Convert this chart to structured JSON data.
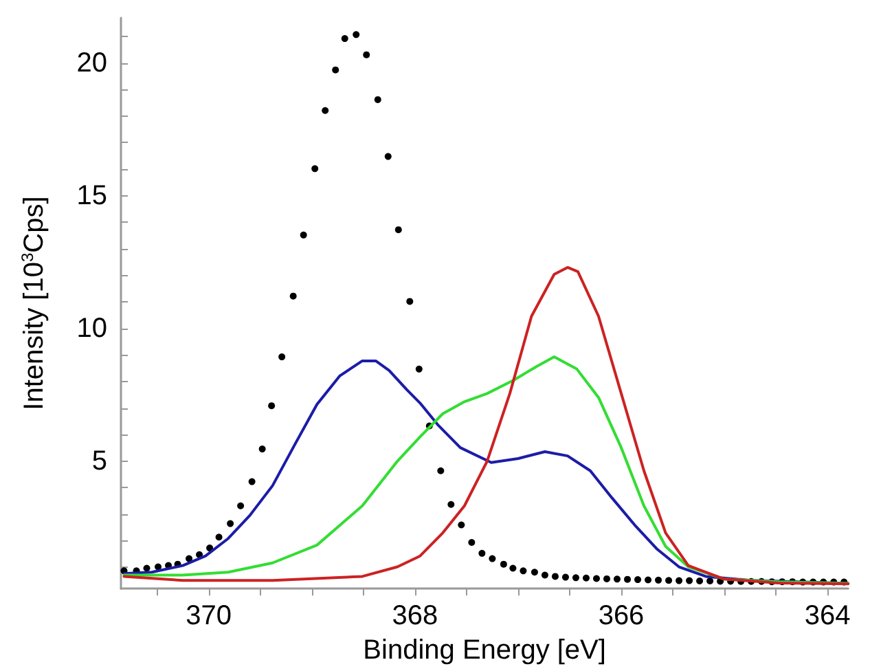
{
  "chart_data": {
    "type": "line",
    "xlabel": "Binding Energy [eV]",
    "ylabel": "Intensity [10$^{3}$Cps]",
    "xlim": [
      370.85,
      363.8
    ],
    "ylim": [
      0.2,
      21.7
    ],
    "xticks": [
      {
        "value": 370.5,
        "label": null
      },
      370,
      {
        "value": 369.5,
        "label": null
      },
      {
        "value": 369,
        "label": null
      },
      {
        "value": 368.5,
        "label": null
      },
      368,
      {
        "value": 367.5,
        "label": null
      },
      {
        "value": 367,
        "label": null
      },
      {
        "value": 366.5,
        "label": null
      },
      366,
      {
        "value": 365.5,
        "label": null
      },
      {
        "value": 365,
        "label": null
      },
      {
        "value": 364.5,
        "label": null
      },
      364
    ],
    "yticks": [
      {
        "value": 1,
        "label": null
      },
      {
        "value": 2,
        "label": null
      },
      {
        "value": 3,
        "label": null
      },
      {
        "value": 4,
        "label": null
      },
      5,
      {
        "value": 6,
        "label": null
      },
      {
        "value": 7,
        "label": null
      },
      {
        "value": 8,
        "label": null
      },
      {
        "value": 9,
        "label": null
      },
      10,
      {
        "value": 11,
        "label": null
      },
      {
        "value": 12,
        "label": null
      },
      {
        "value": 13,
        "label": null
      },
      {
        "value": 14,
        "label": null
      },
      15,
      {
        "value": 16,
        "label": null
      },
      {
        "value": 17,
        "label": null
      },
      {
        "value": 18,
        "label": null
      },
      {
        "value": 19,
        "label": null
      },
      20,
      {
        "value": 21,
        "label": null
      }
    ],
    "grid": false,
    "series": [
      {
        "color": "#1c1ca8",
        "x": [
          370.82,
          370.55,
          370.25,
          370.03,
          369.81,
          369.6,
          369.38,
          369.16,
          368.95,
          368.73,
          368.51,
          368.38,
          368.25,
          368.08,
          367.95,
          367.78,
          367.56,
          367.26,
          367.0,
          366.74,
          366.52,
          366.3,
          366.09,
          365.87,
          365.65,
          365.44,
          365.18,
          364.74,
          363.8
        ],
        "values": [
          0.77,
          0.82,
          1.07,
          1.43,
          2.09,
          2.96,
          4.08,
          5.66,
          7.14,
          8.21,
          8.78,
          8.78,
          8.42,
          7.7,
          7.19,
          6.38,
          5.51,
          4.95,
          5.1,
          5.36,
          5.2,
          4.64,
          3.62,
          2.6,
          1.68,
          1.02,
          0.66,
          0.51,
          0.4
        ]
      },
      {
        "color": "#33dd33",
        "x": [
          370.82,
          370.25,
          369.81,
          369.38,
          368.95,
          368.51,
          368.17,
          367.95,
          367.73,
          367.52,
          367.3,
          367.04,
          366.82,
          366.65,
          366.43,
          366.22,
          366.0,
          365.78,
          365.57,
          365.35,
          365.0,
          364.48,
          363.8
        ],
        "values": [
          0.71,
          0.71,
          0.82,
          1.17,
          1.84,
          3.32,
          5.0,
          5.92,
          6.79,
          7.24,
          7.55,
          8.06,
          8.57,
          8.93,
          8.47,
          7.4,
          5.51,
          3.32,
          1.79,
          1.02,
          0.56,
          0.46,
          0.4
        ]
      },
      {
        "color": "#cc2222",
        "x": [
          370.82,
          370.25,
          369.38,
          368.51,
          368.17,
          367.95,
          367.73,
          367.52,
          367.3,
          367.08,
          366.87,
          366.65,
          366.52,
          366.42,
          366.22,
          366.0,
          365.78,
          365.57,
          365.35,
          365.0,
          364.48,
          363.8
        ],
        "values": [
          0.66,
          0.51,
          0.51,
          0.66,
          1.02,
          1.43,
          2.3,
          3.32,
          5.0,
          7.55,
          10.46,
          12.04,
          12.3,
          12.14,
          10.46,
          7.55,
          4.64,
          2.3,
          1.07,
          0.56,
          0.41,
          0.38
        ]
      },
      {
        "type": "scatter",
        "color": "#000000",
        "x": [
          370.82,
          370.7,
          370.6,
          370.49,
          370.39,
          370.3,
          370.19,
          370.09,
          369.99,
          369.9,
          369.79,
          369.69,
          369.58,
          369.48,
          369.39,
          369.29,
          369.18,
          369.08,
          368.97,
          368.87,
          368.77,
          368.68,
          368.57,
          368.47,
          368.36,
          368.26,
          368.16,
          368.05,
          367.96,
          367.86,
          367.75,
          367.65,
          367.55,
          367.45,
          367.35,
          367.25,
          367.14,
          367.05,
          366.95,
          366.84,
          366.74,
          366.64,
          366.54,
          366.44,
          366.34,
          366.24,
          366.14,
          366.04,
          365.94,
          365.84,
          365.74,
          365.64,
          365.54,
          365.44,
          365.34,
          365.24,
          365.14,
          365.04,
          364.94,
          364.84,
          364.74,
          364.64,
          364.54,
          364.44,
          364.34,
          364.24,
          364.14,
          364.04,
          363.94,
          363.84
        ],
        "values": [
          0.87,
          0.87,
          0.97,
          1.02,
          1.07,
          1.12,
          1.33,
          1.48,
          1.73,
          2.14,
          2.65,
          3.32,
          4.23,
          5.46,
          7.09,
          8.93,
          11.22,
          13.52,
          16.02,
          18.21,
          19.74,
          20.92,
          21.07,
          20.31,
          18.62,
          16.48,
          13.72,
          11.02,
          8.47,
          6.33,
          4.64,
          3.37,
          2.6,
          1.94,
          1.53,
          1.33,
          1.12,
          0.97,
          0.87,
          0.82,
          0.71,
          0.66,
          0.63,
          0.61,
          0.6,
          0.58,
          0.57,
          0.56,
          0.55,
          0.54,
          0.53,
          0.52,
          0.51,
          0.5,
          0.5,
          0.49,
          0.49,
          0.48,
          0.48,
          0.47,
          0.47,
          0.47,
          0.46,
          0.46,
          0.46,
          0.45,
          0.45,
          0.45,
          0.45,
          0.45
        ],
        "marker": "circle"
      }
    ]
  }
}
